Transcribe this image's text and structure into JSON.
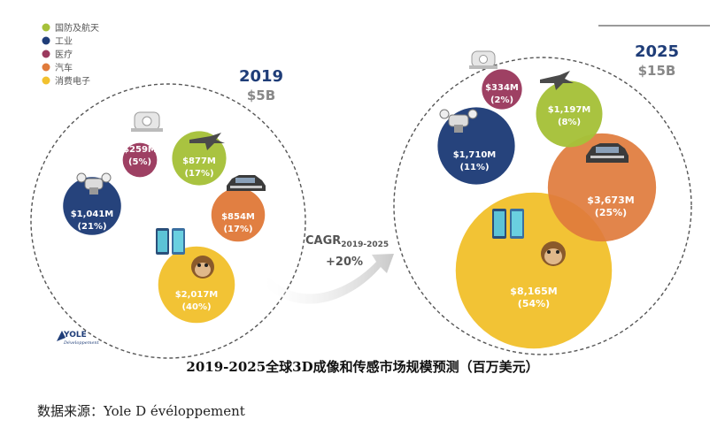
{
  "legend": [
    {
      "label": "国防及航天",
      "color": "#a6c13a"
    },
    {
      "label": "工业",
      "color": "#1f3d78"
    },
    {
      "label": "医疗",
      "color": "#9b3a5e"
    },
    {
      "label": "汽车",
      "color": "#e07b3c"
    },
    {
      "label": "消费电子",
      "color": "#f2c12e"
    }
  ],
  "cagr": {
    "label": "CAGR",
    "sub": "2019-2025",
    "value": "+20%"
  },
  "logo": {
    "name": "YOLE",
    "sub": "Développement"
  },
  "caption": "2019-2025全球3D成像和传感市场规模预测（百万美元）",
  "source": "数据来源：Yole D évéloppement",
  "chart_data": [
    {
      "type": "bubble",
      "year": "2019",
      "total": "$5B",
      "unit": "M USD",
      "series": [
        {
          "name": "国防及航天",
          "value": 877,
          "value_label": "$877M",
          "share": "(17%)"
        },
        {
          "name": "工业",
          "value": 1041,
          "value_label": "$1,041M",
          "share": "(21%)"
        },
        {
          "name": "医疗",
          "value": 259,
          "value_label": "$259M",
          "share": "(5%)"
        },
        {
          "name": "汽车",
          "value": 854,
          "value_label": "$854M",
          "share": "(17%)"
        },
        {
          "name": "消费电子",
          "value": 2017,
          "value_label": "$2,017M",
          "share": "(40%)"
        }
      ]
    },
    {
      "type": "bubble",
      "year": "2025",
      "total": "$15B",
      "unit": "M USD",
      "series": [
        {
          "name": "国防及航天",
          "value": 1197,
          "value_label": "$1,197M",
          "share": "(8%)"
        },
        {
          "name": "工业",
          "value": 1710,
          "value_label": "$1,710M",
          "share": "(11%)"
        },
        {
          "name": "医疗",
          "value": 334,
          "value_label": "$334M",
          "share": "(2%)"
        },
        {
          "name": "汽车",
          "value": 3673,
          "value_label": "$3,673M",
          "share": "(25%)"
        },
        {
          "name": "消费电子",
          "value": 8165,
          "value_label": "$8,165M",
          "share": "(54%)"
        }
      ]
    }
  ]
}
